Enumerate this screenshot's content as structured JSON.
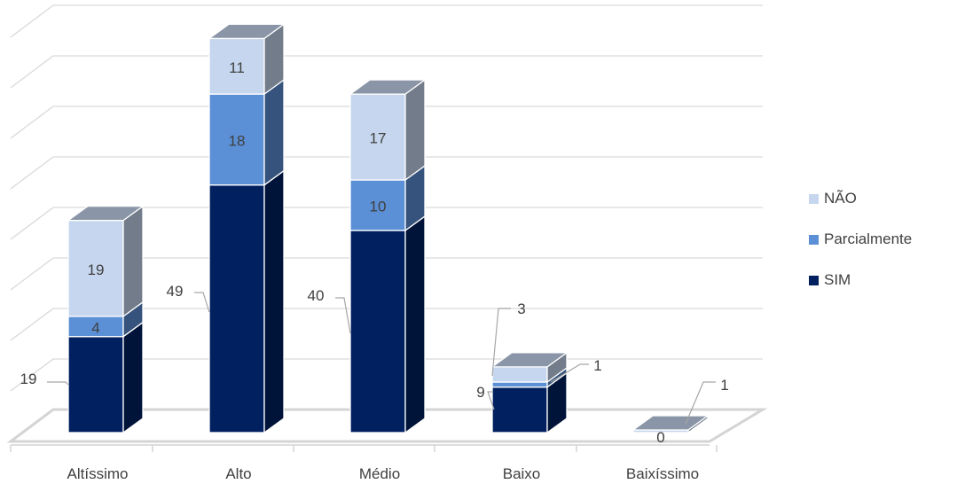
{
  "chart_data": {
    "type": "bar",
    "stacked": true,
    "three_d": true,
    "categories": [
      "Altíssimo",
      "Alto",
      "Médio",
      "Baixo",
      "Baixíssimo"
    ],
    "series": [
      {
        "name": "SIM",
        "values": [
          19,
          49,
          40,
          9,
          0
        ],
        "color": "#002060"
      },
      {
        "name": "Parcialmente",
        "values": [
          4,
          18,
          10,
          1,
          0
        ],
        "color": "#5B8FD6"
      },
      {
        "name": "NÃO",
        "values": [
          19,
          11,
          17,
          3,
          1
        ],
        "color": "#C5D6EE"
      }
    ],
    "ylim": [
      0,
      80
    ],
    "grid": true,
    "legend_position": "right"
  }
}
